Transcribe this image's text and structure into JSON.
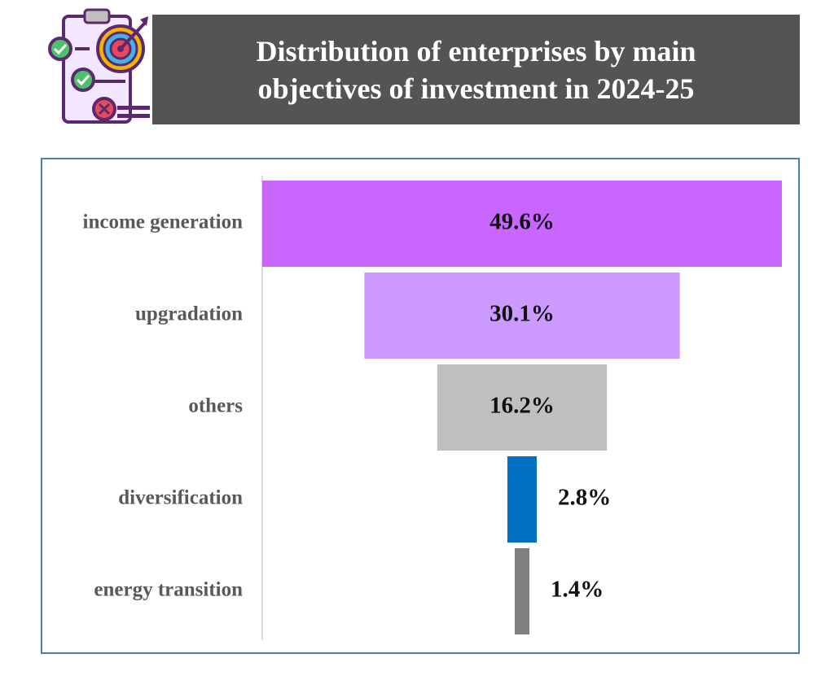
{
  "header": {
    "title_line1": "Distribution of enterprises by main",
    "title_line2": "objectives of investment in 2024-25"
  },
  "logo": {
    "icon": "clipboard-target-checklist-icon"
  },
  "chart_data": {
    "type": "bar",
    "orientation": "horizontal-funnel",
    "categories": [
      "income generation",
      "upgradation",
      "others",
      "diversification",
      "energy transition"
    ],
    "values": [
      49.6,
      30.1,
      16.2,
      2.8,
      1.4
    ],
    "value_labels": [
      "49.6%",
      "30.1%",
      "16.2%",
      "2.8%",
      "1.4%"
    ],
    "unit": "%",
    "colors": [
      "#c866ff",
      "#cc99ff",
      "#bfbfbf",
      "#0070c0",
      "#808080"
    ],
    "title": "Distribution of enterprises by main objectives of investment in 2024-25",
    "xlabel": "",
    "ylabel": "",
    "grid": false,
    "legend": "none"
  }
}
